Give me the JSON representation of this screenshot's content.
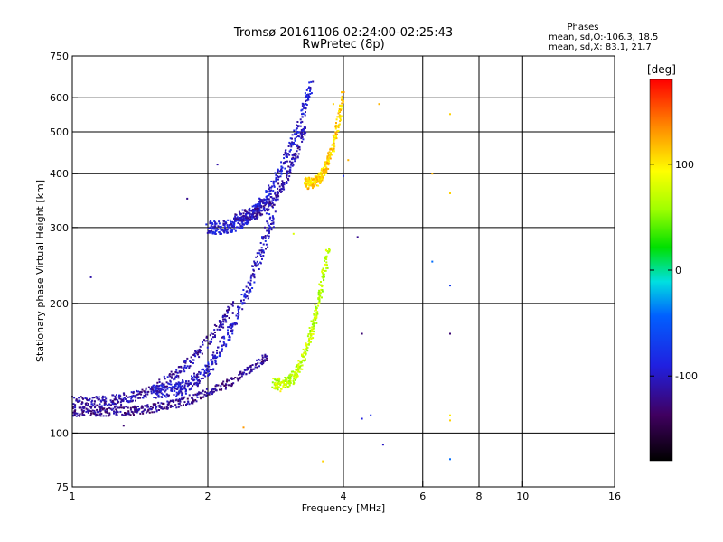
{
  "chart_data": {
    "type": "scatter",
    "title": "Tromsø 20161106 02:24:00-02:25:43",
    "subtitle": "RwPretec (8p)",
    "xlabel": "Frequency [MHz]",
    "ylabel": "Stationary phase Virtual Height [km]",
    "x_scale": "log",
    "y_scale": "log",
    "xlim": [
      1,
      16
    ],
    "ylim": [
      75,
      750
    ],
    "x_ticks": [
      1,
      2,
      4,
      6,
      8,
      10,
      16
    ],
    "x_tick_labels": [
      "1",
      "2",
      "4",
      "6",
      "8",
      "10",
      "16"
    ],
    "y_ticks": [
      75,
      100,
      200,
      300,
      400,
      500,
      600,
      750
    ],
    "y_tick_labels": [
      "75",
      "100",
      "200",
      "300",
      "400",
      "500",
      "600",
      "750"
    ],
    "grid": true,
    "info": {
      "heading": "Phases",
      "line_o": "mean, sd,O:-106.3, 18.5",
      "line_x": "mean, sd,X: 83.1, 21.7"
    },
    "colorbar": {
      "label": "[deg]",
      "range": [
        -180,
        180
      ],
      "ticks": [
        100,
        0,
        -100
      ],
      "tick_labels": [
        "100",
        "0",
        "-100"
      ]
    },
    "traces": [
      {
        "f0": 1.0,
        "f1": 2.7,
        "h0": 112,
        "h1": 150,
        "phase": -120,
        "thick": 4,
        "spread": 0.012,
        "count": 420
      },
      {
        "f0": 1.0,
        "f1": 2.3,
        "h0": 118,
        "h1": 200,
        "phase": -112,
        "thick": 5,
        "spread": 0.015,
        "count": 360
      },
      {
        "f0": 1.5,
        "f1": 2.8,
        "h0": 125,
        "h1": 320,
        "phase": -100,
        "thick": 6,
        "spread": 0.03,
        "count": 420
      },
      {
        "f0": 2.0,
        "f1": 3.4,
        "h0": 300,
        "h1": 640,
        "phase": -95,
        "thick": 6,
        "spread": 0.018,
        "count": 420
      },
      {
        "f0": 2.3,
        "f1": 3.3,
        "h0": 320,
        "h1": 520,
        "phase": -110,
        "thick": 5,
        "spread": 0.02,
        "count": 260
      },
      {
        "f0": 3.3,
        "f1": 4.0,
        "h0": 380,
        "h1": 620,
        "phase": 110,
        "thick": 5,
        "spread": 0.015,
        "count": 300
      },
      {
        "f0": 2.8,
        "f1": 3.7,
        "h0": 130,
        "h1": 265,
        "phase": 70,
        "thick": 5,
        "spread": 0.02,
        "count": 320
      }
    ],
    "isolated_points": [
      {
        "x": 6.3,
        "y": 400,
        "phase": 120
      },
      {
        "x": 6.9,
        "y": 360,
        "phase": 110
      },
      {
        "x": 6.9,
        "y": 550,
        "phase": 110
      },
      {
        "x": 6.3,
        "y": 250,
        "phase": -40
      },
      {
        "x": 6.9,
        "y": 220,
        "phase": -70
      },
      {
        "x": 6.9,
        "y": 170,
        "phase": -130
      },
      {
        "x": 6.9,
        "y": 110,
        "phase": 100
      },
      {
        "x": 6.9,
        "y": 107,
        "phase": 110
      },
      {
        "x": 6.9,
        "y": 87,
        "phase": -40
      },
      {
        "x": 4.4,
        "y": 170,
        "phase": -130
      },
      {
        "x": 4.4,
        "y": 108,
        "phase": -90
      },
      {
        "x": 4.6,
        "y": 110,
        "phase": -80
      },
      {
        "x": 4.9,
        "y": 94,
        "phase": -100
      },
      {
        "x": 4.3,
        "y": 285,
        "phase": -120
      },
      {
        "x": 4.1,
        "y": 430,
        "phase": 120
      },
      {
        "x": 3.8,
        "y": 580,
        "phase": 110
      },
      {
        "x": 2.4,
        "y": 103,
        "phase": 130
      },
      {
        "x": 3.6,
        "y": 86,
        "phase": 110
      },
      {
        "x": 1.8,
        "y": 350,
        "phase": -120
      },
      {
        "x": 1.1,
        "y": 230,
        "phase": -110
      },
      {
        "x": 1.3,
        "y": 104,
        "phase": -130
      },
      {
        "x": 2.6,
        "y": 240,
        "phase": -100
      },
      {
        "x": 2.1,
        "y": 420,
        "phase": -110
      },
      {
        "x": 3.1,
        "y": 290,
        "phase": 80
      },
      {
        "x": 2.9,
        "y": 125,
        "phase": 100
      },
      {
        "x": 4.8,
        "y": 580,
        "phase": 120
      },
      {
        "x": 4.0,
        "y": 395,
        "phase": -80
      }
    ]
  }
}
